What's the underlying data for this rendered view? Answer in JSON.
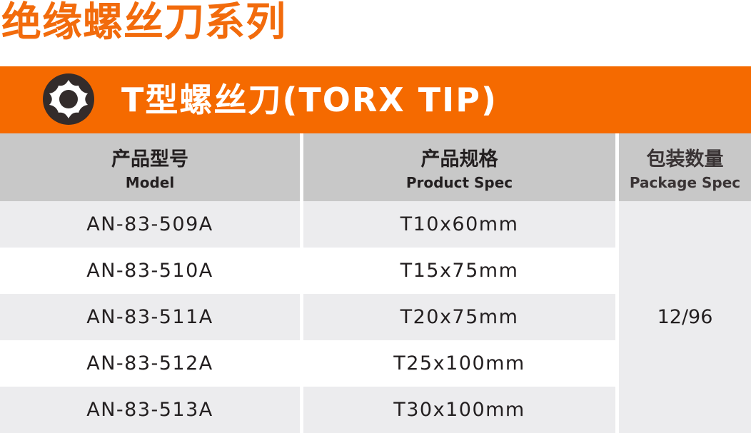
{
  "page_title": "绝缘螺丝刀系列",
  "banner": {
    "title": "T型螺丝刀(TORX TIP)",
    "icon": "torx-icon"
  },
  "headers": [
    {
      "zh": "产品型号",
      "en": "Model"
    },
    {
      "zh": "产品规格",
      "en": "Product Spec"
    },
    {
      "zh": "包装数量",
      "en": "Package Spec"
    }
  ],
  "rows": [
    {
      "model": "AN-83-509A",
      "spec": "T10x60mm"
    },
    {
      "model": "AN-83-510A",
      "spec": "T15x75mm"
    },
    {
      "model": "AN-83-511A",
      "spec": "T20x75mm"
    },
    {
      "model": "AN-83-512A",
      "spec": "T25x100mm"
    },
    {
      "model": "AN-83-513A",
      "spec": "T30x100mm"
    }
  ],
  "package": "12/96",
  "colors": {
    "accent": "#f56a00",
    "header_bg": "#c8c8c8",
    "row_alt": "#ececee"
  }
}
